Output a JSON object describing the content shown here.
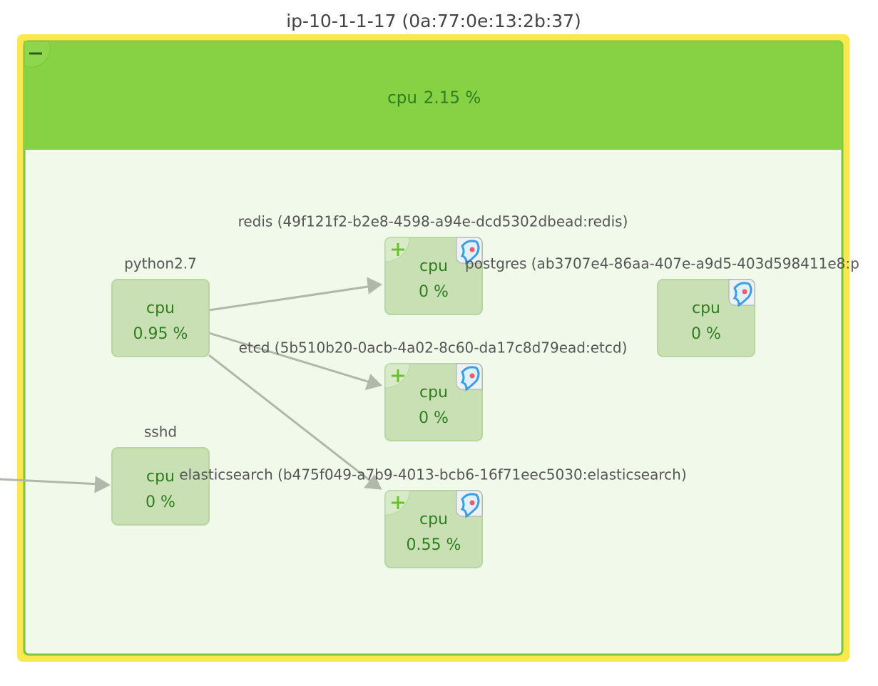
{
  "host": {
    "title": "ip-10-1-1-17 (0a:77:0e:13:2b:37)",
    "metric_label": "cpu",
    "metric_value": "2.15 %"
  },
  "nodes": [
    {
      "label": "python2.7",
      "metric_label": "cpu",
      "metric_value": "0.95 %"
    },
    {
      "label": "redis (49f121f2-b2e8-4598-a94e-dcd5302dbead:redis)",
      "metric_label": "cpu",
      "metric_value": "0 %"
    },
    {
      "label": "postgres (ab3707e4-86aa-407e-a9d5-403d598411e8:p",
      "metric_label": "cpu",
      "metric_value": "0 %"
    },
    {
      "label": "etcd (5b510b20-0acb-4a02-8c60-da17c8d79ead:etcd)",
      "metric_label": "cpu",
      "metric_value": "0 %"
    },
    {
      "label": "sshd",
      "metric_label": "cpu",
      "metric_value": "0 %"
    },
    {
      "label": "elasticsearch (b475f049-a7b9-4013-bcb6-16f71eec5030:elasticsearch)",
      "metric_label": "cpu",
      "metric_value": "0.55 %"
    }
  ]
}
